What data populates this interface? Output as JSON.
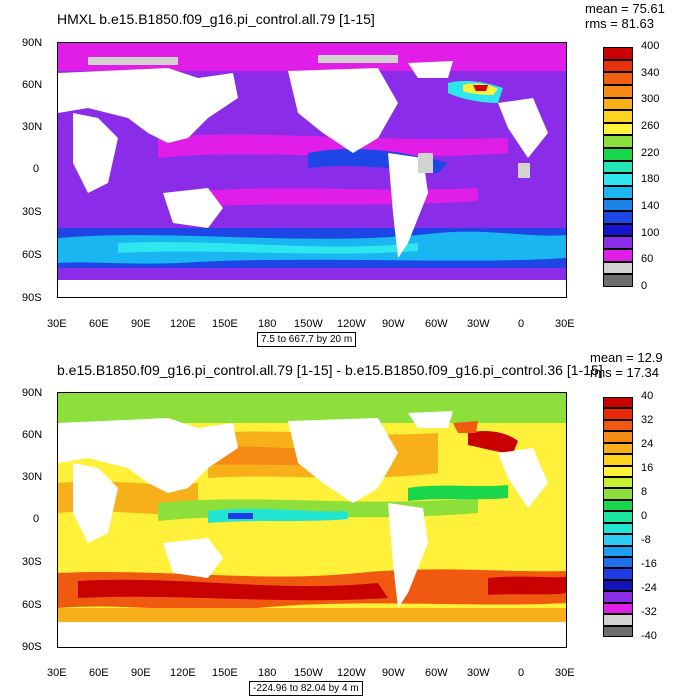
{
  "panels": [
    {
      "title": "HMXL b.e15.B1850.f09_g16.pi_control.all.79 [1-15]",
      "mean": "mean = 75.61",
      "rms": "rms = 81.63",
      "range_text": "7.5 to 667.7 by 20 m",
      "lat_labels": [
        "90N",
        "60N",
        "30N",
        "0",
        "30S",
        "60S",
        "90S"
      ],
      "lon_labels": [
        "30E",
        "60E",
        "90E",
        "120E",
        "150E",
        "180",
        "150W",
        "120W",
        "90W",
        "60W",
        "30W",
        "0",
        "30E"
      ],
      "colorbar_labels": [
        "400",
        "340",
        "300",
        "260",
        "220",
        "180",
        "140",
        "100",
        "60",
        "0"
      ],
      "colorbar_colors": [
        "#cc0000",
        "#e8300a",
        "#f06010",
        "#f58a14",
        "#f8b01a",
        "#ffd21f",
        "#fff03a",
        "#8de03c",
        "#19d64a",
        "#23e6b4",
        "#2ee6ee",
        "#1ab6f2",
        "#1e82e8",
        "#1e46e6",
        "#1414c8",
        "#8a2ce8",
        "#e01ee8",
        "#d2d2d2",
        "#6e6e6e"
      ]
    },
    {
      "title": "b.e15.B1850.f09_g16.pi_control.all.79 [1-15] - b.e15.B1850.f09_g16.pi_control.36 [1-15]",
      "mean": "mean = 12.9",
      "rms": "rms = 17.34",
      "range_text": "-224.96 to 82.04 by 4 m",
      "lat_labels": [
        "90N",
        "60N",
        "30N",
        "0",
        "30S",
        "60S",
        "90S"
      ],
      "lon_labels": [
        "30E",
        "60E",
        "90E",
        "120E",
        "150E",
        "180",
        "150W",
        "120W",
        "90W",
        "60W",
        "30W",
        "0",
        "30E"
      ],
      "colorbar_labels": [
        "40",
        "32",
        "24",
        "16",
        "8",
        "0",
        "-8",
        "-16",
        "-24",
        "-32",
        "-40"
      ],
      "colorbar_colors": [
        "#c80000",
        "#e82a0a",
        "#f05a10",
        "#f58a14",
        "#f8b01a",
        "#ffd21f",
        "#fff03a",
        "#c8ee30",
        "#8de03c",
        "#19d64a",
        "#1ee6a0",
        "#23e6d2",
        "#2ecdf2",
        "#1e9ef0",
        "#1e6ee8",
        "#1e3ce6",
        "#1414b4",
        "#8a2ce8",
        "#e01ee8",
        "#d2d2d2",
        "#6e6e6e"
      ]
    }
  ]
}
